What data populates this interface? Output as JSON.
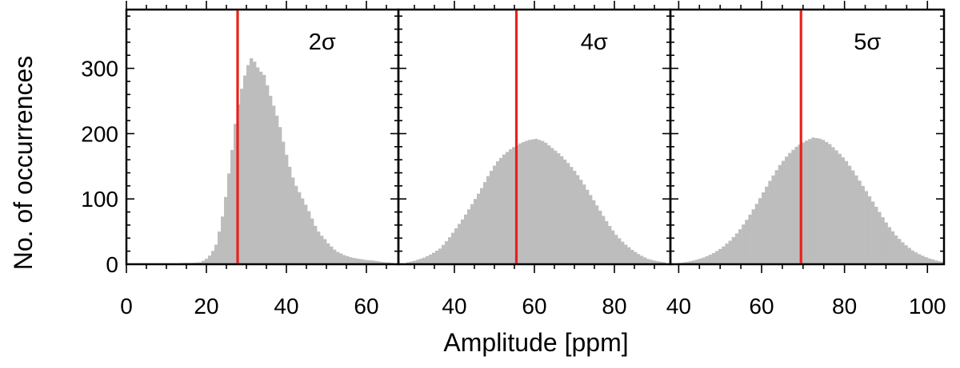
{
  "chart_data": {
    "type": "bar",
    "ylabel": "No. of occurrences",
    "xlabel": "Amplitude [ppm]",
    "ylim": [
      0,
      390
    ],
    "yticks": [
      0,
      100,
      200,
      300
    ],
    "bar_color": "#bdbdbd",
    "marker_color": "#e8211c",
    "panels": [
      {
        "annotation": "2σ",
        "marker_x": 27.8,
        "xlim": [
          0,
          68
        ],
        "xticks": [
          0,
          20,
          40,
          60
        ],
        "bin_width": 0.8,
        "x": [
          10,
          12,
          14,
          16,
          18,
          19,
          20,
          21,
          22,
          23,
          24,
          25,
          26,
          27,
          28,
          29,
          30,
          31,
          32,
          33,
          34,
          35,
          36,
          37,
          38,
          39,
          40,
          41,
          42,
          43,
          44,
          45,
          46,
          47,
          48,
          49,
          50,
          51,
          52,
          53,
          54,
          55,
          56,
          57,
          58,
          59,
          60,
          61,
          62,
          63,
          64,
          65,
          66
        ],
        "values": [
          1,
          1,
          2,
          2,
          3,
          6,
          10,
          18,
          30,
          55,
          85,
          130,
          175,
          225,
          258,
          285,
          305,
          318,
          305,
          296,
          290,
          270,
          250,
          232,
          210,
          182,
          158,
          136,
          120,
          108,
          96,
          84,
          70,
          56,
          46,
          40,
          32,
          26,
          20,
          17,
          14,
          12,
          10,
          9,
          8,
          7,
          6,
          6,
          5,
          4,
          3,
          3,
          2
        ]
      },
      {
        "annotation": "4σ",
        "marker_x": 55.5,
        "xlim": [
          26,
          94
        ],
        "xticks": [
          40,
          60,
          80
        ],
        "bin_width": 0.8,
        "x": [
          28,
          30,
          32,
          34,
          36,
          38,
          40,
          42,
          44,
          46,
          48,
          50,
          52,
          54,
          56,
          58,
          60,
          62,
          64,
          66,
          68,
          70,
          72,
          74,
          76,
          78,
          80,
          82,
          84,
          86,
          88,
          90,
          92
        ],
        "values": [
          3,
          6,
          10,
          16,
          24,
          38,
          55,
          72,
          92,
          112,
          135,
          155,
          168,
          178,
          185,
          190,
          192,
          188,
          178,
          168,
          155,
          140,
          122,
          102,
          82,
          62,
          45,
          32,
          22,
          14,
          8,
          5,
          3
        ]
      },
      {
        "annotation": "5σ",
        "marker_x": 69.5,
        "xlim": [
          38,
          104
        ],
        "xticks": [
          40,
          60,
          80,
          100
        ],
        "bin_width": 0.8,
        "x": [
          40,
          42,
          44,
          46,
          48,
          50,
          52,
          54,
          56,
          58,
          60,
          62,
          64,
          66,
          68,
          70,
          72,
          74,
          76,
          78,
          80,
          82,
          84,
          86,
          88,
          90,
          92,
          94,
          96,
          98,
          100,
          102,
          104
        ],
        "values": [
          2,
          4,
          7,
          11,
          17,
          25,
          36,
          50,
          68,
          88,
          110,
          132,
          152,
          168,
          180,
          188,
          194,
          192,
          184,
          172,
          158,
          140,
          120,
          100,
          80,
          60,
          44,
          31,
          21,
          14,
          9,
          5,
          3
        ]
      }
    ]
  }
}
